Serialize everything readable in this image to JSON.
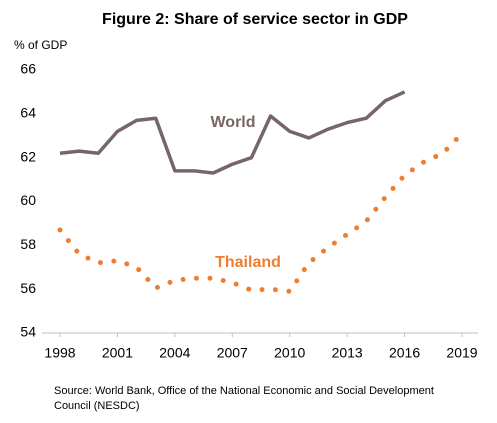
{
  "chart_data": {
    "type": "line",
    "title": "Figure 2: Share of service sector in GDP",
    "y_label": "% of GDP",
    "source": "Source: World Bank, Office of the National Economic and Social Development Council (NESDC)",
    "xlim": [
      1998,
      2019
    ],
    "xticks": [
      1998,
      2001,
      2004,
      2007,
      2010,
      2013,
      2016,
      2019
    ],
    "ylim": [
      54,
      66
    ],
    "yticks": [
      54,
      56,
      58,
      60,
      62,
      64,
      66
    ],
    "grid": false,
    "series": [
      {
        "name": "World",
        "color": "#776665",
        "line_style": "solid",
        "x": [
          1998,
          1999,
          2000,
          2001,
          2002,
          2003,
          2004,
          2005,
          2006,
          2007,
          2008,
          2009,
          2010,
          2011,
          2012,
          2013,
          2014,
          2015,
          2016
        ],
        "values": [
          62.2,
          62.3,
          62.2,
          63.2,
          63.7,
          63.8,
          61.4,
          61.4,
          61.3,
          61.7,
          62.0,
          63.9,
          63.2,
          62.9,
          63.3,
          63.6,
          63.8,
          64.6,
          65.0
        ]
      },
      {
        "name": "Thailand",
        "color": "#ed7d31",
        "line_style": "dotted",
        "x": [
          1998,
          1999,
          2000,
          2001,
          2002,
          2003,
          2004,
          2005,
          2006,
          2007,
          2008,
          2009,
          2010,
          2011,
          2012,
          2013,
          2014,
          2015,
          2016,
          2017,
          2018,
          2019
        ],
        "values": [
          58.7,
          57.6,
          57.2,
          57.3,
          57.0,
          56.05,
          56.4,
          56.5,
          56.5,
          56.3,
          55.95,
          56.0,
          55.9,
          57.2,
          57.9,
          58.5,
          59.1,
          60.2,
          61.2,
          61.8,
          62.2,
          63.1
        ]
      }
    ]
  }
}
